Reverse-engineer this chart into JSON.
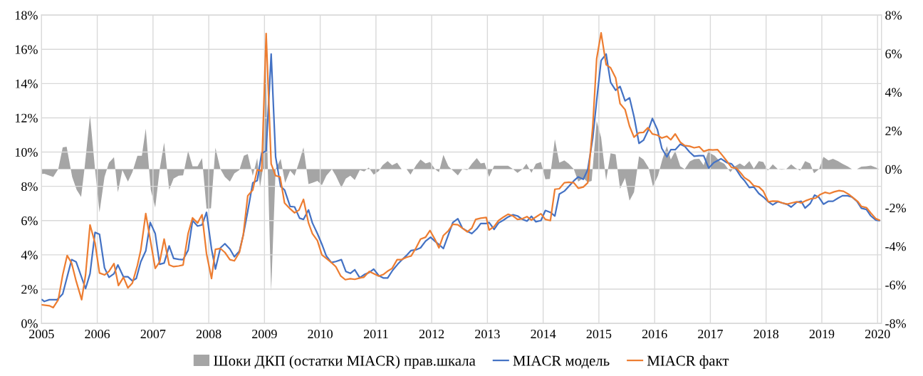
{
  "chart_data": {
    "type": "line",
    "xlim": [
      2005,
      2020.07
    ],
    "xticks": [
      2005,
      2006,
      2007,
      2008,
      2009,
      2010,
      2011,
      2012,
      2013,
      2014,
      2015,
      2016,
      2017,
      2018,
      2019,
      2020
    ],
    "ylim": [
      0,
      18
    ],
    "yticks": [
      {
        "value": 0,
        "label": "0%"
      },
      {
        "value": 2,
        "label": "2%"
      },
      {
        "value": 4,
        "label": "4%"
      },
      {
        "value": 6,
        "label": "6%"
      },
      {
        "value": 8,
        "label": "8%"
      },
      {
        "value": 10,
        "label": "10%"
      },
      {
        "value": 12,
        "label": "12%"
      },
      {
        "value": 14,
        "label": "14%"
      },
      {
        "value": 16,
        "label": "16%"
      },
      {
        "value": 18,
        "label": "18%"
      }
    ],
    "y2lim": [
      -8,
      8
    ],
    "y2ticks": [
      {
        "value": -8,
        "label": "-8%"
      },
      {
        "value": -6,
        "label": "-6%"
      },
      {
        "value": -4,
        "label": "-4%"
      },
      {
        "value": -2,
        "label": "-2%"
      },
      {
        "value": 0,
        "label": "0%"
      },
      {
        "value": 2,
        "label": "2%"
      },
      {
        "value": 4,
        "label": "4%"
      },
      {
        "value": 6,
        "label": "6%"
      },
      {
        "value": 8,
        "label": "8%"
      }
    ],
    "grid": true,
    "legend": "bottom",
    "series": [
      {
        "name": "Шоки ДКП (остатки MIACR) прав.шкала",
        "type": "area",
        "axis": "y2",
        "color": "#a5a5a5",
        "x": [
          2005.01,
          2005.05,
          2005.21,
          2005.3,
          2005.38,
          2005.45,
          2005.55,
          2005.63,
          2005.71,
          2005.77,
          2005.87,
          2005.96,
          2006.04,
          2006.13,
          2006.21,
          2006.3,
          2006.37,
          2006.45,
          2006.55,
          2006.63,
          2006.72,
          2006.8,
          2006.87,
          2006.96,
          2007.04,
          2007.12,
          2007.2,
          2007.29,
          2007.37,
          2007.46,
          2007.54,
          2007.63,
          2007.71,
          2007.8,
          2007.88,
          2007.96,
          2008.04,
          2008.12,
          2008.21,
          2008.29,
          2008.38,
          2008.46,
          2008.55,
          2008.63,
          2008.7,
          2008.79,
          2008.87,
          2008.92,
          2008.97,
          2009.02,
          2009.06,
          2009.12,
          2009.2,
          2009.29,
          2009.37,
          2009.46,
          2009.54,
          2009.63,
          2009.7,
          2009.79,
          2009.86,
          2009.95,
          2010.03,
          2010.11,
          2010.21,
          2010.28,
          2010.38,
          2010.46,
          2010.54,
          2010.62,
          2010.71,
          2010.79,
          2010.87,
          2010.96,
          2011.05,
          2011.12,
          2011.21,
          2011.29,
          2011.38,
          2011.46,
          2011.55,
          2011.62,
          2011.72,
          2011.8,
          2011.89,
          2011.97,
          2012.06,
          2012.13,
          2012.21,
          2012.3,
          2012.38,
          2012.47,
          2012.55,
          2012.64,
          2012.72,
          2012.81,
          2012.88,
          2012.95,
          2013.03,
          2013.12,
          2013.2,
          2013.29,
          2013.37,
          2013.46,
          2013.54,
          2013.63,
          2013.7,
          2013.79,
          2013.87,
          2013.96,
          2014.04,
          2014.12,
          2014.21,
          2014.29,
          2014.38,
          2014.46,
          2014.55,
          2014.63,
          2014.72,
          2014.8,
          2014.87,
          2014.96,
          2015.04,
          2015.13,
          2015.21,
          2015.3,
          2015.38,
          2015.47,
          2015.55,
          2015.63,
          2015.72,
          2015.8,
          2015.89,
          2015.97,
          2016.06,
          2016.14,
          2016.22,
          2016.29,
          2016.37,
          2016.46,
          2016.54,
          2016.63,
          2016.71,
          2016.8,
          2016.88,
          2016.97,
          2017.0,
          2017.08,
          2017.17,
          2017.25,
          2017.36,
          2017.44,
          2017.53,
          2017.61,
          2017.7,
          2017.78,
          2017.87,
          2017.95,
          2018.03,
          2018.12,
          2018.21,
          2018.28,
          2018.36,
          2018.45,
          2018.53,
          2018.61,
          2018.7,
          2018.79,
          2018.86,
          2018.95,
          2019.03,
          2019.12,
          2019.2,
          2019.29,
          2019.37,
          2019.46,
          2019.54,
          2019.63,
          2019.71,
          2019.8,
          2019.88,
          2019.97,
          2020.03
        ],
        "values": [
          -0.25,
          -0.24,
          -0.4,
          0,
          1.13,
          1.17,
          -0.4,
          -1.07,
          -1.44,
          0,
          2.79,
          0,
          -2.24,
          -0.4,
          0.34,
          0.62,
          -1.2,
          -0.04,
          -0.64,
          -0.15,
          0.7,
          0.7,
          2.11,
          -1.07,
          -1.99,
          0,
          1.38,
          -1.07,
          -0.49,
          -0.34,
          -0.32,
          0.95,
          0.15,
          0.15,
          0.58,
          -2.05,
          -2.03,
          1.11,
          0,
          -0.4,
          -0.64,
          -0.22,
          -0.04,
          0.7,
          0.79,
          -0.34,
          0.58,
          -0.95,
          0,
          6.0,
          0,
          -6.34,
          0,
          0.54,
          -0.71,
          -0.07,
          -0.34,
          0.46,
          1.13,
          -0.77,
          -0.71,
          -0.61,
          -0.83,
          -0.34,
          0,
          -0.34,
          -0.95,
          -0.49,
          -0.34,
          -0.56,
          -0.04,
          -0.12,
          0.09,
          -0.28,
          -0.1,
          0.21,
          0.42,
          0.21,
          0.34,
          0,
          0,
          -0.28,
          0.21,
          0.5,
          0.3,
          0.37,
          0,
          -0.15,
          0.74,
          0.15,
          -0.07,
          -0.32,
          0,
          -0.04,
          0.28,
          0.58,
          0.3,
          0.34,
          -0.4,
          0.18,
          0.18,
          0.18,
          0.18,
          0,
          -0.19,
          0,
          0.28,
          -0.19,
          0.28,
          0.37,
          -0.52,
          -0.5,
          1.56,
          0.34,
          0.46,
          0.28,
          0,
          -0.64,
          -0.46,
          -0.68,
          -0.61,
          2.51,
          1.65,
          -0.58,
          0.83,
          0.77,
          -1.01,
          -0.46,
          -1.63,
          -1.2,
          0.67,
          0.5,
          0.09,
          -0.89,
          -0.34,
          0.52,
          1.2,
          0.5,
          0.95,
          0.15,
          0,
          0.4,
          0.52,
          0.54,
          0.21,
          0.99,
          0.83,
          0.7,
          0.4,
          0.28,
          -0.15,
          0.15,
          0.3,
          0.15,
          0.42,
          0.03,
          0.42,
          0.37,
          -0.07,
          0.25,
          0,
          -0.02,
          0,
          0.25,
          0.06,
          -0.07,
          0.42,
          0.3,
          -0.21,
          0,
          0.64,
          0.46,
          0.54,
          0.42,
          0.28,
          0.15,
          0,
          0,
          0.13,
          0.15,
          0.19,
          0.09,
          0
        ]
      },
      {
        "name": "MIACR модель",
        "axis": "y",
        "color": "#4472c4",
        "x": [
          2005.01,
          2005.05,
          2005.14,
          2005.28,
          2005.38,
          2005.54,
          2005.62,
          2005.79,
          2005.87,
          2005.96,
          2006.04,
          2006.13,
          2006.21,
          2006.3,
          2006.37,
          2006.47,
          2006.55,
          2006.63,
          2006.7,
          2006.78,
          2006.87,
          2006.95,
          2007.04,
          2007.12,
          2007.2,
          2007.29,
          2007.37,
          2007.46,
          2007.54,
          2007.63,
          2007.71,
          2007.8,
          2007.88,
          2007.96,
          2008.05,
          2008.12,
          2008.21,
          2008.29,
          2008.38,
          2008.46,
          2008.55,
          2008.62,
          2008.7,
          2008.79,
          2008.87,
          2008.95,
          2009.03,
          2009.12,
          2009.2,
          2009.29,
          2009.36,
          2009.46,
          2009.54,
          2009.63,
          2009.7,
          2009.79,
          2009.86,
          2009.95,
          2010.03,
          2010.11,
          2010.2,
          2010.28,
          2010.38,
          2010.46,
          2010.54,
          2010.62,
          2010.71,
          2010.79,
          2010.88,
          2010.96,
          2011.05,
          2011.13,
          2011.21,
          2011.3,
          2011.39,
          2011.47,
          2011.56,
          2011.63,
          2011.72,
          2011.8,
          2011.89,
          2011.98,
          2012.06,
          2012.15,
          2012.21,
          2012.3,
          2012.38,
          2012.47,
          2012.55,
          2012.64,
          2012.72,
          2012.81,
          2012.88,
          2012.98,
          2013.03,
          2013.12,
          2013.2,
          2013.29,
          2013.37,
          2013.46,
          2013.54,
          2013.63,
          2013.71,
          2013.79,
          2013.87,
          2013.96,
          2014.04,
          2014.13,
          2014.21,
          2014.29,
          2014.38,
          2014.46,
          2014.55,
          2014.63,
          2014.72,
          2014.8,
          2014.89,
          2014.97,
          2015.04,
          2015.13,
          2015.21,
          2015.3,
          2015.38,
          2015.47,
          2015.55,
          2015.63,
          2015.72,
          2015.8,
          2015.89,
          2015.96,
          2016.05,
          2016.13,
          2016.22,
          2016.29,
          2016.37,
          2016.46,
          2016.54,
          2016.63,
          2016.71,
          2016.8,
          2016.88,
          2016.97,
          2017.06,
          2017.19,
          2017.3,
          2017.38,
          2017.47,
          2017.55,
          2017.61,
          2017.7,
          2017.78,
          2017.87,
          2017.95,
          2018.04,
          2018.12,
          2018.21,
          2018.29,
          2018.38,
          2018.45,
          2018.55,
          2018.63,
          2018.7,
          2018.79,
          2018.87,
          2018.95,
          2019.03,
          2019.12,
          2019.2,
          2019.29,
          2019.37,
          2019.46,
          2019.54,
          2019.63,
          2019.71,
          2019.8,
          2019.88,
          2019.97,
          2020.03
        ],
        "values": [
          1.38,
          1.28,
          1.38,
          1.38,
          1.72,
          3.72,
          3.59,
          2.03,
          2.9,
          5.31,
          5.2,
          3.24,
          2.69,
          2.9,
          3.41,
          2.72,
          2.72,
          2.48,
          2.62,
          3.59,
          4.23,
          5.89,
          5.24,
          3.45,
          3.52,
          4.52,
          3.79,
          3.74,
          3.72,
          4.27,
          6.0,
          5.68,
          5.75,
          6.48,
          4.34,
          3.17,
          4.41,
          4.65,
          4.34,
          3.89,
          4.21,
          5.17,
          6.55,
          8.2,
          8.34,
          9.93,
          10.07,
          15.72,
          9.72,
          8.0,
          7.79,
          6.83,
          6.8,
          6.14,
          6.07,
          6.62,
          5.86,
          5.24,
          4.62,
          3.93,
          3.55,
          3.61,
          3.72,
          3.03,
          2.92,
          3.13,
          2.66,
          2.85,
          2.97,
          3.17,
          2.79,
          2.65,
          2.65,
          3.1,
          3.45,
          3.72,
          4.0,
          4.25,
          4.3,
          4.41,
          4.8,
          5.03,
          4.79,
          4.55,
          4.37,
          5.17,
          5.89,
          6.11,
          5.56,
          5.38,
          5.24,
          5.52,
          5.83,
          5.83,
          5.89,
          5.49,
          5.86,
          6.03,
          6.21,
          6.34,
          6.27,
          6.07,
          5.97,
          6.25,
          5.93,
          6.0,
          6.59,
          6.48,
          6.27,
          7.55,
          7.72,
          8.0,
          8.32,
          8.55,
          8.41,
          8.97,
          10.82,
          13.31,
          15.35,
          15.72,
          14.07,
          13.61,
          13.83,
          12.99,
          13.17,
          12.07,
          10.51,
          10.69,
          11.31,
          11.96,
          11.31,
          10.21,
          9.72,
          10.14,
          10.14,
          10.46,
          10.34,
          9.99,
          9.76,
          9.79,
          9.79,
          9.07,
          9.38,
          9.61,
          9.38,
          9.31,
          8.96,
          8.55,
          8.34,
          7.93,
          7.96,
          7.58,
          7.38,
          7.1,
          6.92,
          7.1,
          7.03,
          6.94,
          6.79,
          7.07,
          7.13,
          6.73,
          6.99,
          7.49,
          7.35,
          6.96,
          7.13,
          7.13,
          7.31,
          7.45,
          7.45,
          7.38,
          7.13,
          6.72,
          6.65,
          6.27,
          6.03,
          6.0
        ]
      },
      {
        "name": "MIACR факт",
        "axis": "y",
        "color": "#ed7d31",
        "x": [
          2005.01,
          2005.14,
          2005.21,
          2005.3,
          2005.38,
          2005.46,
          2005.54,
          2005.62,
          2005.72,
          2005.79,
          2005.87,
          2005.96,
          2006.04,
          2006.13,
          2006.21,
          2006.3,
          2006.38,
          2006.47,
          2006.55,
          2006.63,
          2006.72,
          2006.78,
          2006.87,
          2006.95,
          2007.04,
          2007.12,
          2007.2,
          2007.29,
          2007.37,
          2007.46,
          2007.54,
          2007.63,
          2007.71,
          2007.8,
          2007.88,
          2007.96,
          2008.05,
          2008.12,
          2008.21,
          2008.29,
          2008.38,
          2008.46,
          2008.55,
          2008.62,
          2008.7,
          2008.79,
          2008.87,
          2008.95,
          2009.03,
          2009.12,
          2009.2,
          2009.28,
          2009.36,
          2009.46,
          2009.54,
          2009.62,
          2009.7,
          2009.79,
          2009.86,
          2009.95,
          2010.03,
          2010.11,
          2010.2,
          2010.28,
          2010.37,
          2010.45,
          2010.54,
          2010.62,
          2010.71,
          2010.78,
          2010.88,
          2010.96,
          2011.05,
          2011.13,
          2011.22,
          2011.29,
          2011.38,
          2011.46,
          2011.55,
          2011.63,
          2011.72,
          2011.8,
          2011.89,
          2011.97,
          2012.06,
          2012.13,
          2012.21,
          2012.3,
          2012.38,
          2012.47,
          2012.55,
          2012.64,
          2012.72,
          2012.79,
          2012.88,
          2012.98,
          2013.03,
          2013.12,
          2013.2,
          2013.29,
          2013.37,
          2013.46,
          2013.54,
          2013.63,
          2013.71,
          2013.79,
          2013.87,
          2013.96,
          2014.04,
          2014.13,
          2014.21,
          2014.29,
          2014.38,
          2014.46,
          2014.55,
          2014.63,
          2014.72,
          2014.8,
          2014.89,
          2014.96,
          2015.04,
          2015.13,
          2015.21,
          2015.3,
          2015.38,
          2015.47,
          2015.55,
          2015.63,
          2015.72,
          2015.8,
          2015.88,
          2015.96,
          2016.05,
          2016.13,
          2016.22,
          2016.29,
          2016.37,
          2016.46,
          2016.54,
          2016.63,
          2016.71,
          2016.8,
          2016.88,
          2016.97,
          2017.04,
          2017.13,
          2017.21,
          2017.3,
          2017.38,
          2017.47,
          2017.55,
          2017.61,
          2017.7,
          2017.78,
          2017.87,
          2017.95,
          2018.04,
          2018.12,
          2018.21,
          2018.29,
          2018.38,
          2018.46,
          2018.55,
          2018.63,
          2018.72,
          2018.8,
          2018.89,
          2018.97,
          2019.06,
          2019.14,
          2019.22,
          2019.31,
          2019.39,
          2019.48,
          2019.56,
          2019.65,
          2019.71,
          2019.8,
          2019.88,
          2019.97,
          2020.03
        ],
        "values": [
          1.08,
          1.03,
          0.92,
          1.38,
          2.83,
          3.96,
          3.52,
          2.48,
          1.38,
          2.83,
          5.75,
          4.69,
          2.94,
          2.83,
          3.03,
          3.49,
          2.21,
          2.69,
          2.07,
          2.35,
          3.38,
          4.27,
          6.41,
          4.9,
          3.21,
          3.59,
          4.92,
          3.41,
          3.31,
          3.35,
          3.41,
          5.24,
          6.16,
          5.86,
          6.34,
          4.07,
          2.62,
          4.32,
          4.37,
          4.14,
          3.72,
          3.65,
          4.14,
          5.17,
          7.45,
          7.79,
          8.97,
          8.89,
          16.92,
          9.31,
          8.62,
          8.55,
          7.03,
          6.69,
          6.45,
          6.62,
          7.24,
          5.86,
          5.24,
          4.83,
          4.0,
          3.79,
          3.55,
          3.31,
          2.76,
          2.55,
          2.61,
          2.57,
          2.65,
          2.69,
          3.03,
          2.9,
          2.76,
          2.85,
          3.07,
          3.21,
          3.72,
          3.72,
          3.86,
          3.93,
          4.41,
          4.92,
          5.03,
          5.42,
          4.9,
          4.41,
          5.13,
          5.41,
          5.79,
          5.76,
          5.56,
          5.34,
          5.56,
          6.07,
          6.14,
          6.18,
          5.45,
          5.65,
          6.0,
          6.21,
          6.37,
          6.27,
          6.07,
          6.11,
          6.23,
          6.03,
          6.21,
          6.4,
          6.07,
          6.0,
          7.83,
          7.86,
          8.21,
          8.24,
          8.21,
          7.89,
          7.96,
          8.21,
          11.51,
          15.45,
          16.96,
          15.1,
          14.92,
          14.34,
          12.83,
          12.48,
          11.51,
          10.87,
          11.13,
          11.15,
          11.42,
          11.06,
          10.99,
          10.82,
          10.92,
          10.72,
          11.06,
          10.58,
          10.38,
          10.34,
          10.25,
          10.31,
          10.04,
          10.14,
          10.12,
          10.14,
          9.83,
          9.45,
          9.1,
          9.06,
          8.76,
          8.51,
          8.32,
          8.03,
          7.97,
          7.72,
          7.1,
          7.14,
          7.13,
          7.03,
          6.96,
          7.03,
          7.1,
          7.03,
          7.17,
          7.27,
          7.31,
          7.52,
          7.65,
          7.58,
          7.68,
          7.75,
          7.71,
          7.54,
          7.34,
          7.1,
          6.83,
          6.76,
          6.44,
          6.11,
          6.03
        ]
      }
    ]
  }
}
